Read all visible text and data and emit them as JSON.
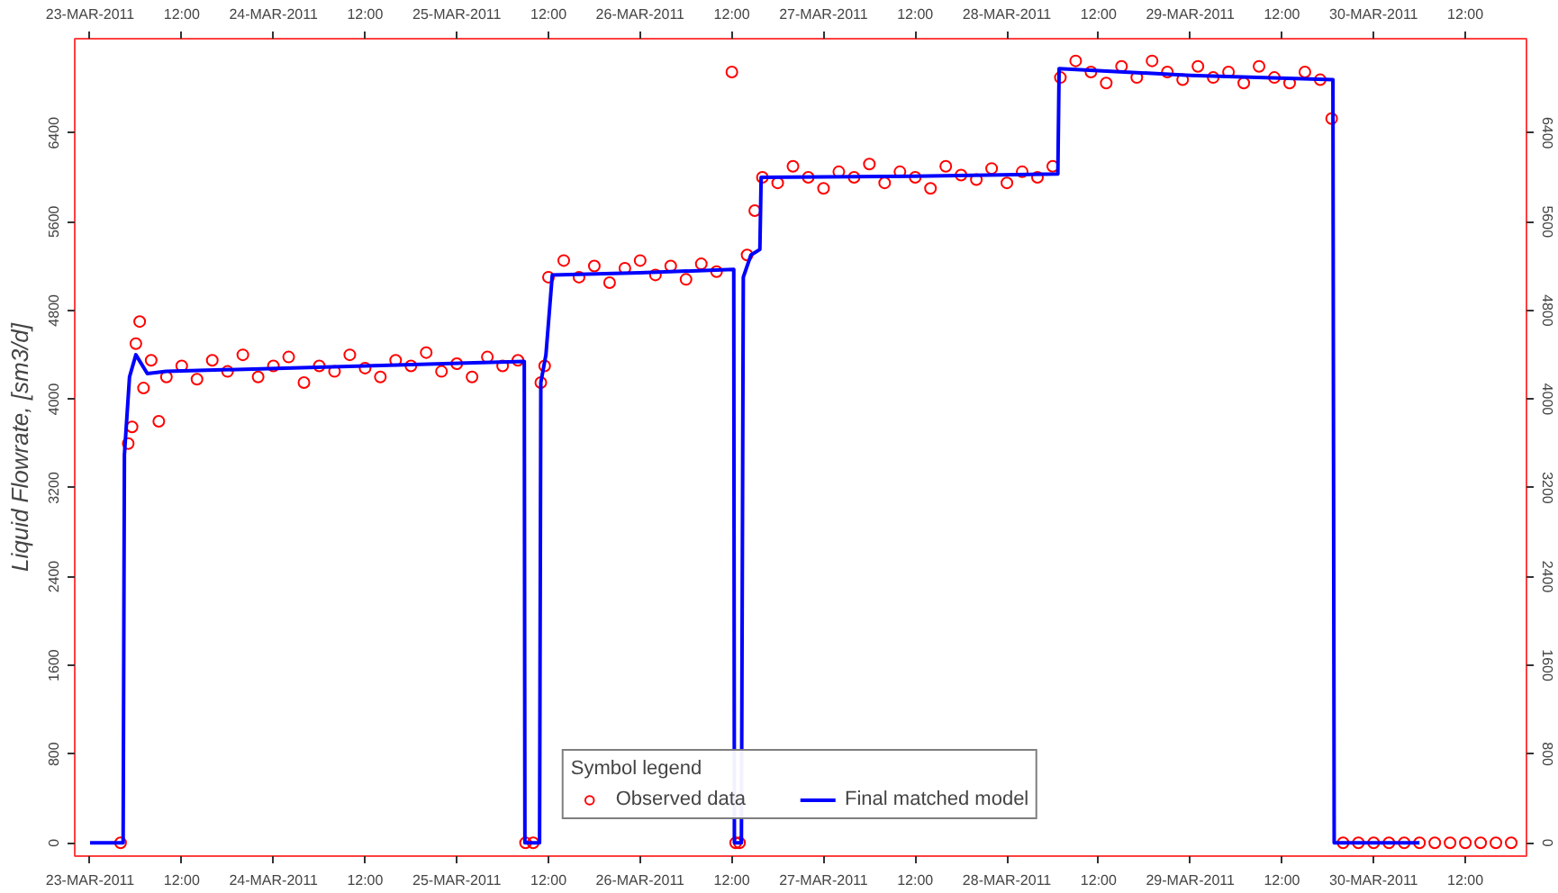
{
  "chart_data": {
    "type": "scatter",
    "ylabel": "Liquid Flowrate, [sm3/d]",
    "legend_title": "Symbol legend",
    "legend": "bottom",
    "grid": false,
    "xlim": [
      "2011-03-22T22:00",
      "2011-03-30T20:00"
    ],
    "x2lim": [
      "2011-03-22T22:00",
      "2011-03-30T20:00"
    ],
    "ylim": [
      -120,
      7250
    ],
    "y2lim": [
      -120,
      7250
    ],
    "xticks": [
      {
        "value": "2011-03-23T00:00",
        "label": "23-MAR-2011"
      },
      {
        "value": "2011-03-23T12:00",
        "label": "12:00"
      },
      {
        "value": "2011-03-24T00:00",
        "label": "24-MAR-2011"
      },
      {
        "value": "2011-03-24T12:00",
        "label": "12:00"
      },
      {
        "value": "2011-03-25T00:00",
        "label": "25-MAR-2011"
      },
      {
        "value": "2011-03-25T12:00",
        "label": "12:00"
      },
      {
        "value": "2011-03-26T00:00",
        "label": "26-MAR-2011"
      },
      {
        "value": "2011-03-26T12:00",
        "label": "12:00"
      },
      {
        "value": "2011-03-27T00:00",
        "label": "27-MAR-2011"
      },
      {
        "value": "2011-03-27T12:00",
        "label": "12:00"
      },
      {
        "value": "2011-03-28T00:00",
        "label": "28-MAR-2011"
      },
      {
        "value": "2011-03-28T12:00",
        "label": "12:00"
      },
      {
        "value": "2011-03-29T00:00",
        "label": "29-MAR-2011"
      },
      {
        "value": "2011-03-29T12:00",
        "label": "12:00"
      },
      {
        "value": "2011-03-30T00:00",
        "label": "30-MAR-2011"
      },
      {
        "value": "2011-03-30T12:00",
        "label": "12:00"
      }
    ],
    "x2ticks": [
      {
        "value": "2011-03-23T00:00",
        "label": "23-MAR-2011"
      },
      {
        "value": "2011-03-23T12:00",
        "label": "12:00"
      },
      {
        "value": "2011-03-24T00:00",
        "label": "24-MAR-2011"
      },
      {
        "value": "2011-03-24T12:00",
        "label": "12:00"
      },
      {
        "value": "2011-03-25T00:00",
        "label": "25-MAR-2011"
      },
      {
        "value": "2011-03-25T12:00",
        "label": "12:00"
      },
      {
        "value": "2011-03-26T00:00",
        "label": "26-MAR-2011"
      },
      {
        "value": "2011-03-26T12:00",
        "label": "12:00"
      },
      {
        "value": "2011-03-27T00:00",
        "label": "27-MAR-2011"
      },
      {
        "value": "2011-03-27T12:00",
        "label": "12:00"
      },
      {
        "value": "2011-03-28T00:00",
        "label": "28-MAR-2011"
      },
      {
        "value": "2011-03-28T12:00",
        "label": "12:00"
      },
      {
        "value": "2011-03-29T00:00",
        "label": "29-MAR-2011"
      },
      {
        "value": "2011-03-29T12:00",
        "label": "12:00"
      },
      {
        "value": "2011-03-30T00:00",
        "label": "30-MAR-2011"
      },
      {
        "value": "2011-03-30T12:00",
        "label": "12:00"
      }
    ],
    "yticks": [
      0,
      800,
      1600,
      2400,
      3200,
      4000,
      4800,
      5600,
      6400
    ],
    "y2ticks": [
      0,
      800,
      1600,
      2400,
      3200,
      4000,
      4800,
      5600,
      6400
    ],
    "series": [
      {
        "name": "Observed data",
        "marker": "circle",
        "color": "#ff0000",
        "x": [
          "2011-03-23T04:00",
          "2011-03-23T05:00",
          "2011-03-23T05:30",
          "2011-03-23T06:00",
          "2011-03-23T06:30",
          "2011-03-23T07:00",
          "2011-03-23T08:00",
          "2011-03-23T09:00",
          "2011-03-23T10:00",
          "2011-03-23T12:00",
          "2011-03-23T14:00",
          "2011-03-23T16:00",
          "2011-03-23T18:00",
          "2011-03-23T20:00",
          "2011-03-23T22:00",
          "2011-03-24T00:00",
          "2011-03-24T02:00",
          "2011-03-24T04:00",
          "2011-03-24T06:00",
          "2011-03-24T08:00",
          "2011-03-24T10:00",
          "2011-03-24T12:00",
          "2011-03-24T14:00",
          "2011-03-24T16:00",
          "2011-03-24T18:00",
          "2011-03-24T20:00",
          "2011-03-24T22:00",
          "2011-03-25T00:00",
          "2011-03-25T02:00",
          "2011-03-25T04:00",
          "2011-03-25T06:00",
          "2011-03-25T08:00",
          "2011-03-25T09:00",
          "2011-03-25T10:00",
          "2011-03-25T11:00",
          "2011-03-25T11:30",
          "2011-03-25T12:00",
          "2011-03-25T14:00",
          "2011-03-25T16:00",
          "2011-03-25T18:00",
          "2011-03-25T20:00",
          "2011-03-25T22:00",
          "2011-03-26T00:00",
          "2011-03-26T02:00",
          "2011-03-26T04:00",
          "2011-03-26T06:00",
          "2011-03-26T08:00",
          "2011-03-26T10:00",
          "2011-03-26T12:00",
          "2011-03-26T12:30",
          "2011-03-26T13:00",
          "2011-03-26T14:00",
          "2011-03-26T15:00",
          "2011-03-26T16:00",
          "2011-03-26T18:00",
          "2011-03-26T20:00",
          "2011-03-26T22:00",
          "2011-03-27T00:00",
          "2011-03-27T02:00",
          "2011-03-27T04:00",
          "2011-03-27T06:00",
          "2011-03-27T08:00",
          "2011-03-27T10:00",
          "2011-03-27T12:00",
          "2011-03-27T14:00",
          "2011-03-27T16:00",
          "2011-03-27T18:00",
          "2011-03-27T20:00",
          "2011-03-27T22:00",
          "2011-03-28T00:00",
          "2011-03-28T02:00",
          "2011-03-28T04:00",
          "2011-03-28T06:00",
          "2011-03-28T07:00",
          "2011-03-28T09:00",
          "2011-03-28T11:00",
          "2011-03-28T13:00",
          "2011-03-28T15:00",
          "2011-03-28T17:00",
          "2011-03-28T19:00",
          "2011-03-28T21:00",
          "2011-03-28T23:00",
          "2011-03-29T01:00",
          "2011-03-29T03:00",
          "2011-03-29T05:00",
          "2011-03-29T07:00",
          "2011-03-29T09:00",
          "2011-03-29T11:00",
          "2011-03-29T13:00",
          "2011-03-29T15:00",
          "2011-03-29T17:00",
          "2011-03-29T18:30",
          "2011-03-29T20:00",
          "2011-03-29T22:00",
          "2011-03-30T00:00",
          "2011-03-30T02:00",
          "2011-03-30T04:00",
          "2011-03-30T06:00",
          "2011-03-30T08:00",
          "2011-03-30T10:00",
          "2011-03-30T12:00",
          "2011-03-30T14:00",
          "2011-03-30T16:00",
          "2011-03-30T18:00"
        ],
        "values": [
          0,
          3600,
          3750,
          4500,
          4700,
          4100,
          4350,
          3800,
          4200,
          4300,
          4180,
          4350,
          4250,
          4400,
          4200,
          4300,
          4380,
          4150,
          4300,
          4250,
          4400,
          4280,
          4200,
          4350,
          4300,
          4420,
          4250,
          4320,
          4200,
          4380,
          4300,
          4350,
          0,
          0,
          4150,
          4300,
          5100,
          5250,
          5100,
          5200,
          5050,
          5180,
          5250,
          5120,
          5200,
          5080,
          5220,
          5150,
          6950,
          0,
          0,
          5300,
          5700,
          6000,
          5950,
          6100,
          6000,
          5900,
          6050,
          6000,
          6120,
          5950,
          6050,
          6000,
          5900,
          6100,
          6020,
          5980,
          6080,
          5950,
          6050,
          6000,
          6100,
          6900,
          7050,
          6950,
          6850,
          7000,
          6900,
          7050,
          6950,
          6880,
          7000,
          6900,
          6950,
          6850,
          7000,
          6900,
          6850,
          6950,
          6880,
          6530,
          0,
          0,
          0,
          0,
          0,
          0,
          0,
          0,
          0,
          0,
          0,
          0
        ]
      },
      {
        "name": "Final matched model",
        "type": "line",
        "marker": "none",
        "color": "#0000ff",
        "x": [
          "2011-03-23T00:00",
          "2011-03-23T04:20",
          "2011-03-23T04:30",
          "2011-03-23T05:10",
          "2011-03-23T06:00",
          "2011-03-23T07:30",
          "2011-03-23T10:00",
          "2011-03-24T12:00",
          "2011-03-25T08:50",
          "2011-03-25T08:55",
          "2011-03-25T10:50",
          "2011-03-25T11:00",
          "2011-03-25T11:40",
          "2011-03-25T12:30",
          "2011-03-26T00:00",
          "2011-03-26T12:15",
          "2011-03-26T12:20",
          "2011-03-26T13:15",
          "2011-03-26T13:30",
          "2011-03-26T14:30",
          "2011-03-26T15:40",
          "2011-03-26T15:50",
          "2011-03-27T12:00",
          "2011-03-28T06:40",
          "2011-03-28T06:50",
          "2011-03-29T00:00",
          "2011-03-29T18:40",
          "2011-03-29T18:50",
          "2011-03-30T06:00"
        ],
        "values": [
          0,
          0,
          3500,
          4200,
          4400,
          4230,
          4250,
          4300,
          4340,
          0,
          0,
          4150,
          4400,
          5120,
          5140,
          5170,
          0,
          0,
          5100,
          5300,
          5350,
          6000,
          6010,
          6030,
          6980,
          6920,
          6880,
          0,
          0
        ]
      }
    ]
  }
}
